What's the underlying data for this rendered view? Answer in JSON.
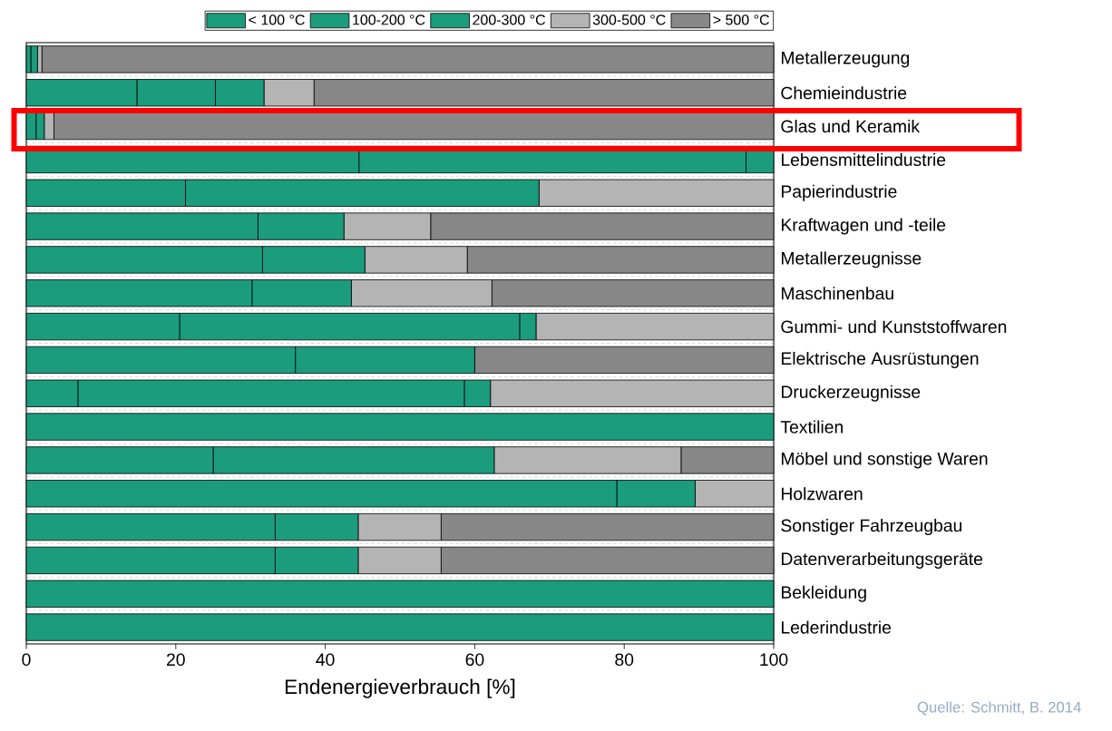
{
  "chart_data": {
    "type": "bar",
    "orientation": "horizontal",
    "stacked": true,
    "categories": [
      "Metallerzeugung",
      "Chemieindustrie",
      "Glas und Keramik",
      "Lebensmittelindustrie",
      "Papierindustrie",
      "Kraftwagen und -teile",
      "Metallerzeugnisse",
      "Maschinenbau",
      "Gummi- und Kunststoffwaren",
      "Elektrische Ausrüstungen",
      "Druckerzeugnisse",
      "Textilien",
      "Möbel und sonstige Waren",
      "Holzwaren",
      "Sonstiger Fahrzeugbau",
      "Datenverarbeitungsgeräte",
      "Bekleidung",
      "Lederindustrie"
    ],
    "series": [
      {
        "name": "< 100 °C",
        "color": "#1b9c7d",
        "values": [
          0.6,
          14.8,
          1.3,
          44.5,
          21.3,
          31.0,
          31.6,
          30.2,
          20.5,
          36.0,
          6.9,
          100,
          25.0,
          79.0,
          33.3,
          33.3,
          100,
          100
        ]
      },
      {
        "name": "100-200 °C",
        "color": "#1b9c7d",
        "values": [
          0.9,
          10.5,
          1.1,
          51.8,
          47.3,
          11.5,
          13.7,
          13.3,
          45.5,
          24.0,
          51.7,
          0,
          37.6,
          10.5,
          11.1,
          11.1,
          0,
          0
        ]
      },
      {
        "name": "200-300 °C",
        "color": "#1b9c7d",
        "values": [
          0,
          6.5,
          0,
          3.7,
          0,
          0,
          0,
          0,
          2.2,
          0,
          3.5,
          0,
          0,
          0,
          0,
          0,
          0,
          0
        ]
      },
      {
        "name": "300-500 °C",
        "color": "#b4b4b4",
        "values": [
          0.6,
          6.7,
          1.3,
          0,
          31.4,
          11.6,
          13.7,
          18.8,
          31.8,
          0,
          37.9,
          0,
          25.0,
          10.5,
          11.1,
          11.1,
          0,
          0
        ]
      },
      {
        "name": "> 500 °C",
        "color": "#878787",
        "values": [
          97.9,
          61.5,
          96.3,
          0,
          0,
          45.9,
          41.0,
          37.7,
          0,
          40.0,
          0,
          0,
          12.4,
          0,
          44.5,
          44.5,
          0,
          0
        ]
      }
    ],
    "xlim": [
      0,
      100
    ],
    "xticks": [
      0,
      20,
      40,
      60,
      80,
      100
    ],
    "xlabel": "Endenergieverbrauch [%]",
    "grid": "y",
    "legend": "top",
    "annotations": [
      "Quelle: Schmitt, B. 2014"
    ]
  }
}
